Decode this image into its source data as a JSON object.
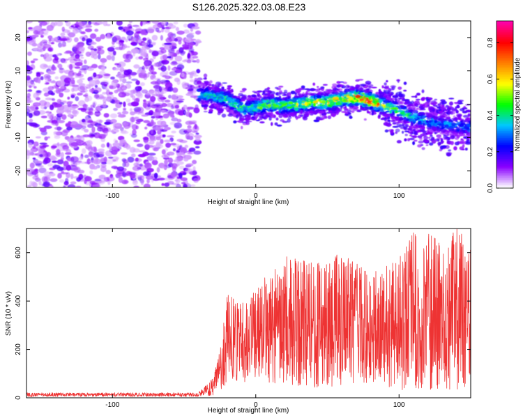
{
  "title": "S126.2025.322.03.08.E23",
  "chart_data": [
    {
      "type": "heatmap",
      "panel": "spectrogram",
      "xlabel": "Height of straight line (km)",
      "ylabel": "Frequency (Hz)",
      "xlim": [
        -160,
        150
      ],
      "ylim": [
        -25,
        25
      ],
      "xticks": [
        -100,
        0,
        100
      ],
      "yticks": [
        -20,
        -10,
        0,
        10,
        20
      ],
      "noise_region_x": [
        -160,
        -40
      ],
      "noise_extent_y": [
        -25,
        25
      ],
      "trace": {
        "x": [
          -40,
          -30,
          -20,
          -10,
          0,
          10,
          20,
          30,
          40,
          50,
          60,
          70,
          80,
          90,
          100,
          110,
          120,
          130,
          140,
          150
        ],
        "center_hz": [
          3,
          2.5,
          1.5,
          -1.5,
          -1,
          0,
          -0.5,
          0,
          0.5,
          0.5,
          1.5,
          2,
          1,
          -0.5,
          -2,
          -4,
          -5,
          -6,
          -6.5,
          -7
        ],
        "peak_amplitude": [
          0.35,
          0.4,
          0.45,
          0.5,
          0.5,
          0.55,
          0.5,
          0.55,
          0.6,
          0.65,
          0.7,
          0.8,
          0.9,
          0.55,
          0.45,
          0.4,
          0.35,
          0.3,
          0.3,
          0.28
        ]
      },
      "colorbar": {
        "label": "Normalized spectral amplitude",
        "range": [
          0,
          0.92
        ],
        "ticks": [
          "0.0",
          "0.2",
          "0.4",
          "0.6",
          "0.8"
        ],
        "colors": [
          "#ffffff",
          "#8a00ff",
          "#0000ff",
          "#00c8ff",
          "#00ff00",
          "#ffff00",
          "#ff8000",
          "#ff0000",
          "#ff00aa"
        ]
      }
    },
    {
      "type": "line",
      "panel": "snr",
      "xlabel": "Height of straight line (km)",
      "ylabel": "SNR (10 * v/v)",
      "xlim": [
        -160,
        150
      ],
      "ylim": [
        0,
        700
      ],
      "xticks": [
        -100,
        0,
        100
      ],
      "yticks": [
        0,
        200,
        400,
        600
      ],
      "color": "#ee3333",
      "envelope": {
        "x": [
          -160,
          -40,
          -30,
          -25,
          -20,
          -10,
          0,
          10,
          20,
          40,
          60,
          80,
          90,
          100,
          110,
          120,
          130,
          140,
          150
        ],
        "max": [
          25,
          25,
          80,
          200,
          430,
          400,
          480,
          520,
          600,
          560,
          600,
          520,
          560,
          580,
          690,
          680,
          640,
          700,
          650
        ],
        "min": [
          5,
          5,
          10,
          30,
          60,
          60,
          80,
          60,
          60,
          40,
          50,
          60,
          50,
          30,
          40,
          30,
          40,
          30,
          50
        ]
      }
    }
  ]
}
